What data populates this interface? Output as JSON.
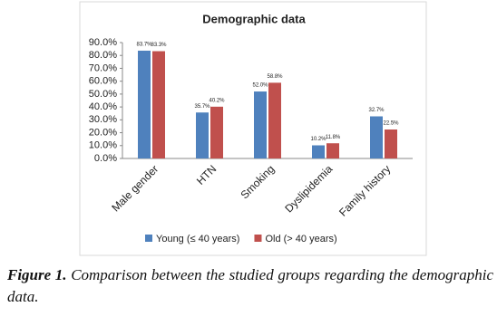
{
  "chart_data": {
    "type": "bar",
    "title": "Demographic data",
    "categories": [
      "Male gender",
      "HTN",
      "Smoking",
      "Dyslipidemia",
      "Family history"
    ],
    "series": [
      {
        "name": "Young (≤ 40 years)",
        "color": "#4f81bd",
        "values": [
          83.7,
          35.7,
          52.0,
          10.2,
          32.7
        ],
        "value_labels": [
          "83.7%",
          "35.7%",
          "52.0%",
          "10.2%",
          "32.7%"
        ]
      },
      {
        "name": "Old (> 40 years)",
        "color": "#c0504d",
        "values": [
          83.3,
          40.2,
          58.8,
          11.8,
          22.5
        ],
        "value_labels": [
          "83.3%",
          "40.2%",
          "58.8%",
          "11.8%",
          "22.5%"
        ]
      }
    ],
    "ylim": [
      0,
      90
    ],
    "yticks": [
      {
        "value": 0,
        "label": "0.0%"
      },
      {
        "value": 10,
        "label": "10.0%"
      },
      {
        "value": 20,
        "label": "20.0%"
      },
      {
        "value": 30,
        "label": "30.0%"
      },
      {
        "value": 40,
        "label": "40.0%"
      },
      {
        "value": 50,
        "label": "50.0%"
      },
      {
        "value": 60,
        "label": "60.0%"
      },
      {
        "value": 70,
        "label": "70.0%"
      },
      {
        "value": 80,
        "label": "80.0%"
      },
      {
        "value": 90,
        "label": "90.0%"
      }
    ],
    "grid": false,
    "legend": "bottom"
  },
  "caption": {
    "label": "Figure 1.",
    "text": "Comparison between the studied groups regarding the demographic data."
  }
}
